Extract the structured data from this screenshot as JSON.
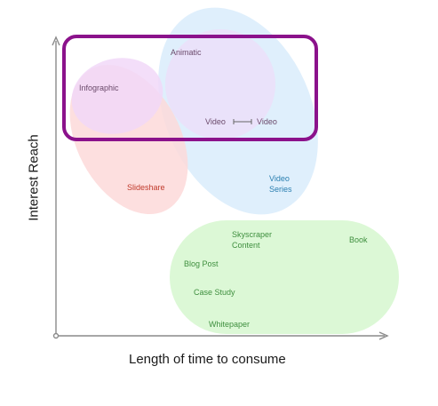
{
  "axes": {
    "x_label": "Length of time to consume",
    "y_label": "Interest Reach"
  },
  "items": {
    "animatic": "Animatic",
    "infographic": "Infographic",
    "video_a": "Video",
    "video_b": "Video",
    "slideshare": "Slideshare",
    "video_series": "Video\nSeries",
    "skyscraper": "Skyscraper\nContent",
    "book": "Book",
    "blog_post": "Blog Post",
    "case_study": "Case Study",
    "whitepaper": "Whitepaper"
  },
  "colors": {
    "axis": "#8a8a8a",
    "highlight_box": "#8b128b",
    "blue_region": "#d9ecfb",
    "purple_region": "#f1d8f8",
    "red_region": "#fdd9d9",
    "green_region": "#dcf8d6",
    "green_text": "#3f8f3f",
    "red_text": "#c0392b",
    "blue_text": "#2a7fb0",
    "purple_text": "#6b4a6b"
  }
}
